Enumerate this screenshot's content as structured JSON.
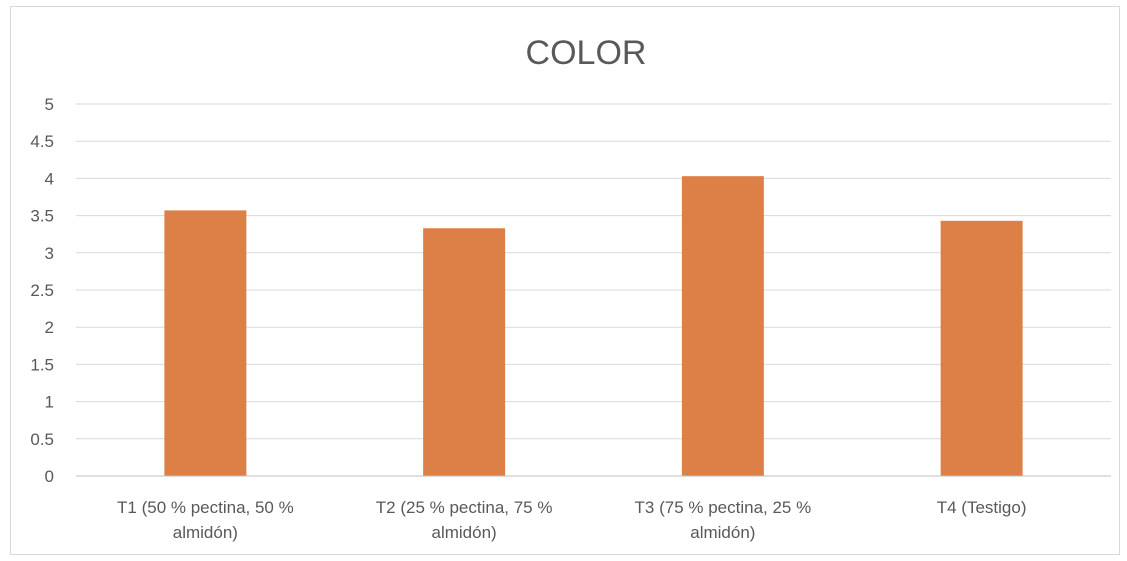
{
  "chart_data": {
    "type": "bar",
    "title": "COLOR",
    "categories": [
      [
        "T1 (50 % pectina, 50 %",
        "almidón)"
      ],
      [
        "T2 (25 % pectina, 75 %",
        "almidón)"
      ],
      [
        "T3 (75 % pectina, 25 %",
        "almidón)"
      ],
      [
        "T4 (Testigo)"
      ]
    ],
    "series": [
      {
        "values": [
          3.57,
          3.33,
          4.03,
          3.43
        ]
      }
    ],
    "yticks": [
      "0",
      "0.5",
      "1",
      "1.5",
      "2",
      "2.5",
      "3",
      "3.5",
      "4",
      "4.5",
      "5"
    ],
    "ylim": [
      0,
      5
    ],
    "grid": true,
    "legend": "none",
    "bar_color": "#dd8047",
    "xlabel": "",
    "ylabel": ""
  }
}
